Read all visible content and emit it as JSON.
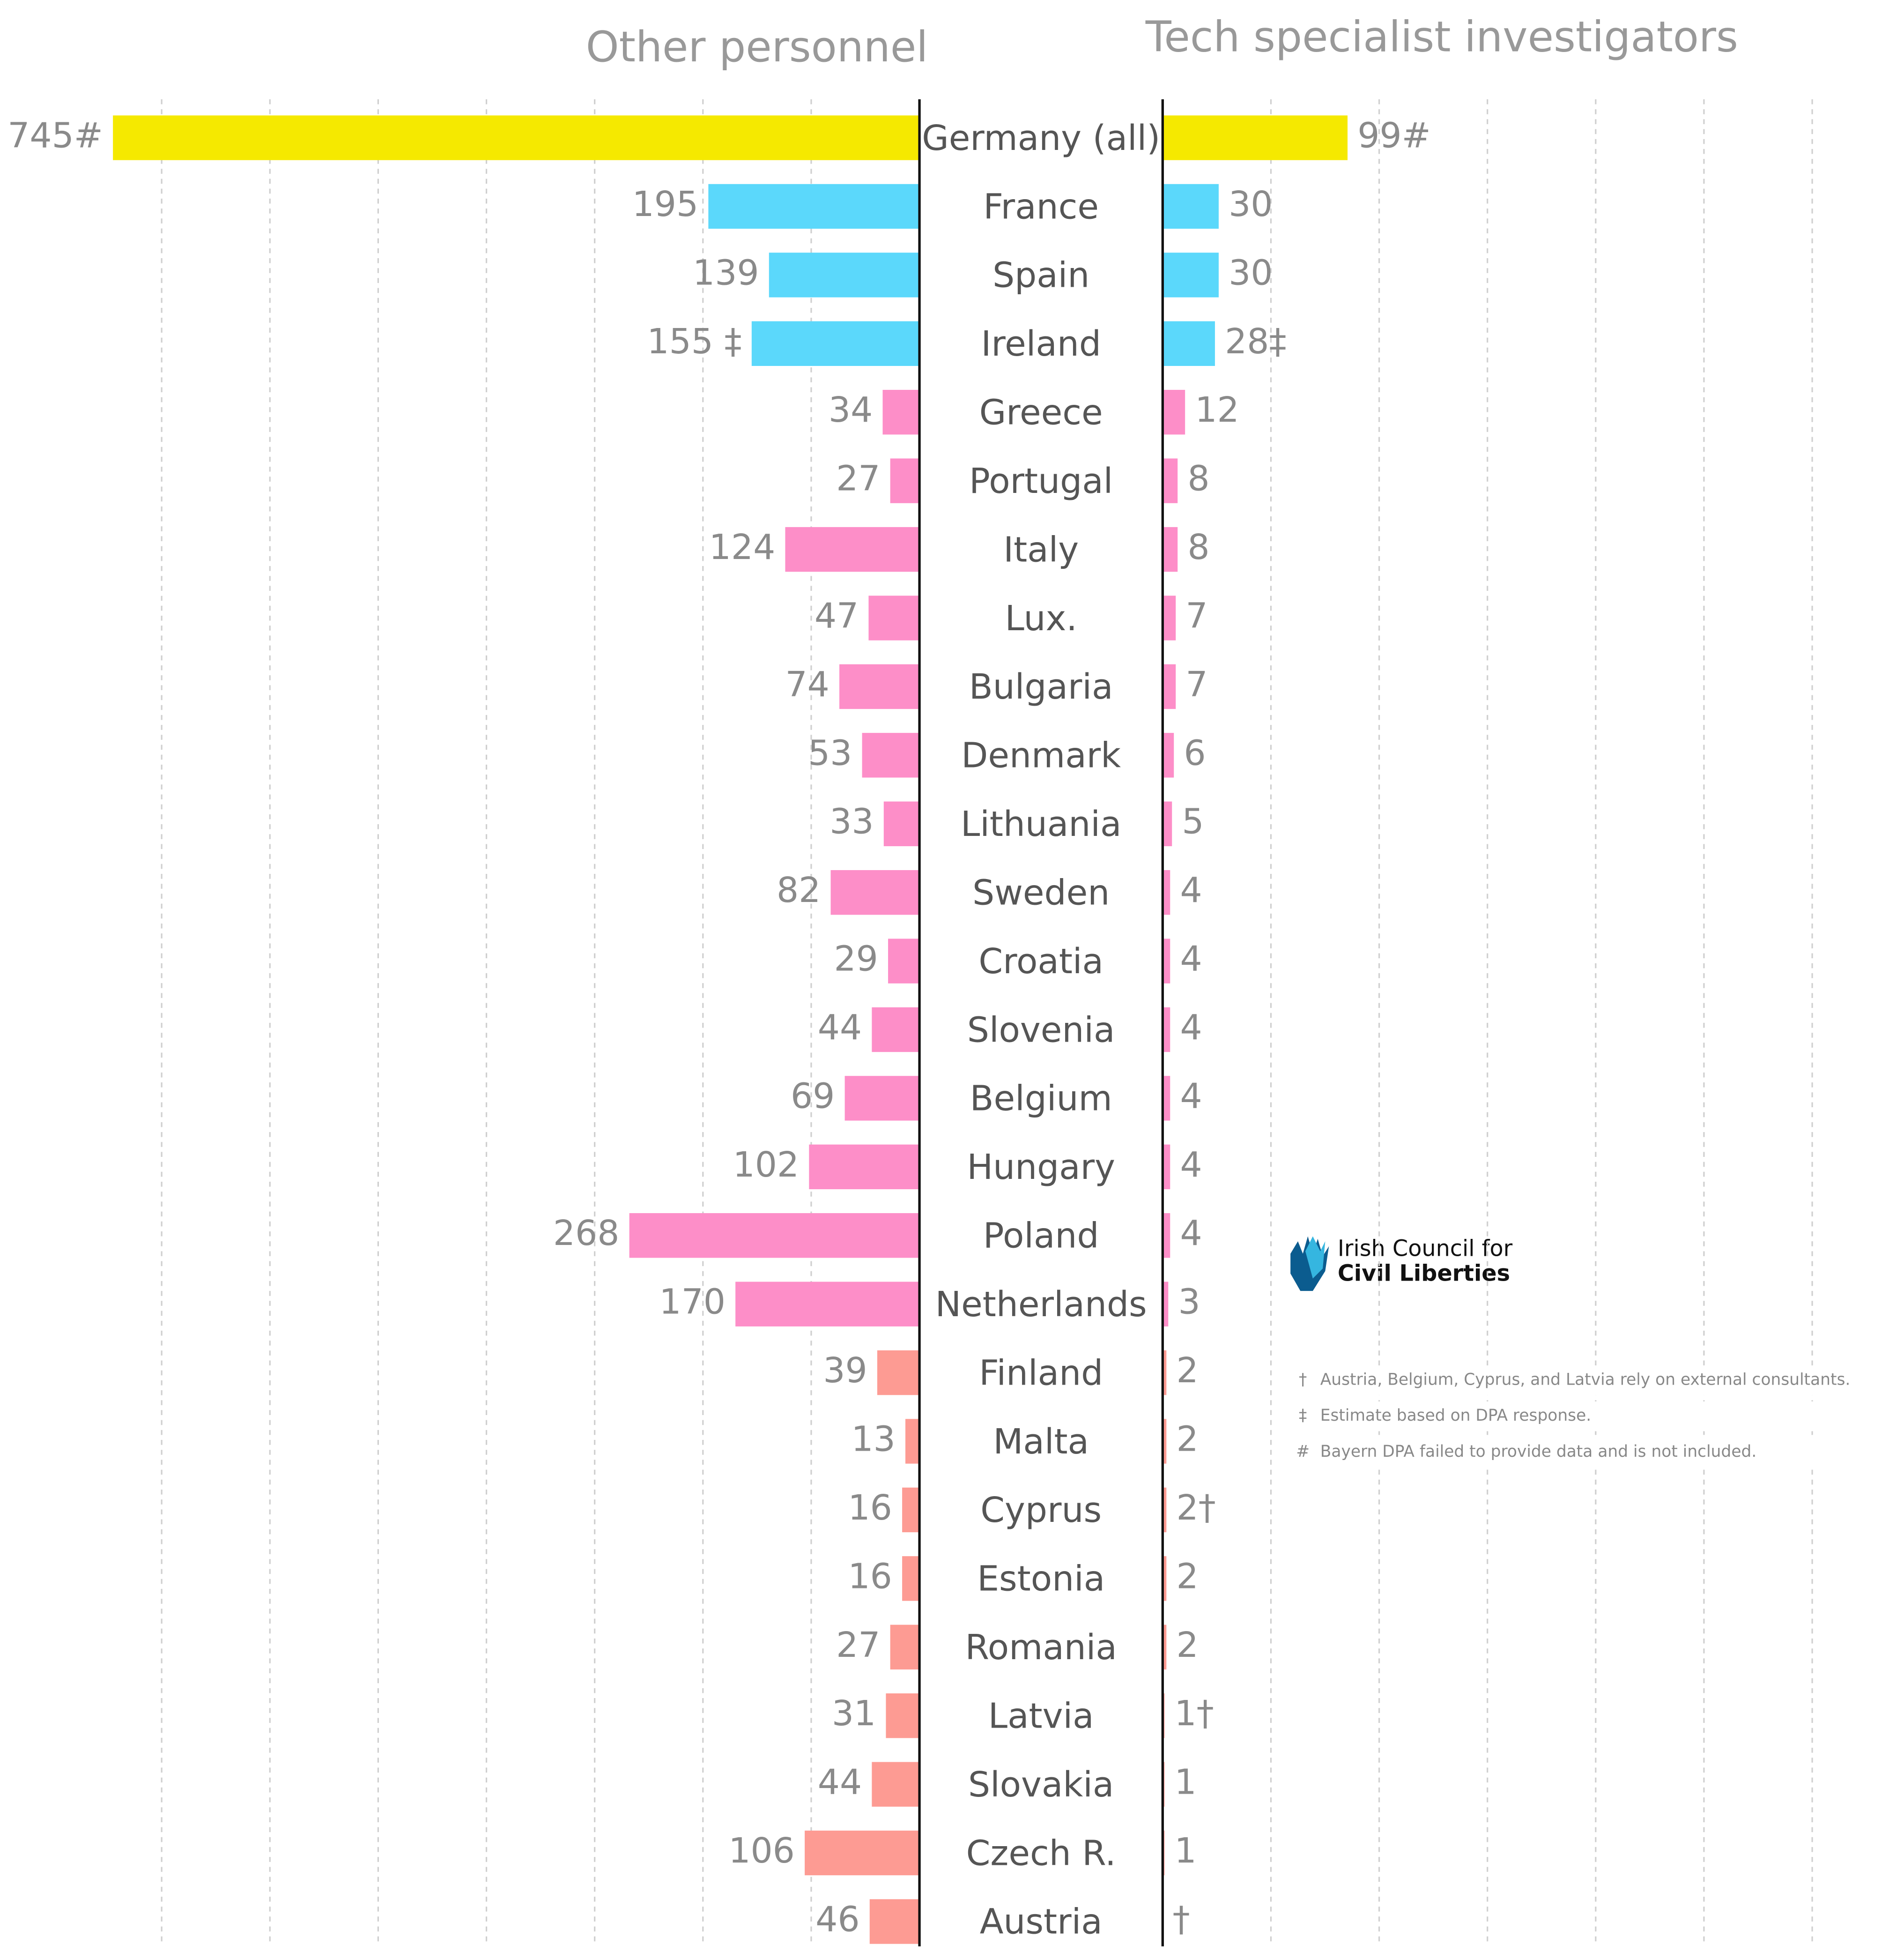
{
  "chart_data": {
    "type": "butterfly",
    "categories": [
      "Germany (all)",
      "France",
      "Spain",
      "Ireland",
      "Greece",
      "Portugal",
      "Italy",
      "Lux.",
      "Bulgaria",
      "Denmark",
      "Lithuania",
      "Sweden",
      "Croatia",
      "Slovenia",
      "Belgium",
      "Hungary",
      "Poland",
      "Netherlands",
      "Finland",
      "Malta",
      "Cyprus",
      "Estonia",
      "Romania",
      "Latvia",
      "Slovakia",
      "Czech R.",
      "Austria"
    ],
    "colors": [
      "#f5e900",
      "#5bd8fb",
      "#5bd8fb",
      "#5bd8fb",
      "#fd8ec8",
      "#fd8ec8",
      "#fd8ec8",
      "#fd8ec8",
      "#fd8ec8",
      "#fd8ec8",
      "#fd8ec8",
      "#fd8ec8",
      "#fd8ec8",
      "#fd8ec8",
      "#fd8ec8",
      "#fd8ec8",
      "#fd8ec8",
      "#fd8ec8",
      "#fd9b93",
      "#fd9b93",
      "#fd9b93",
      "#fd9b93",
      "#fd9b93",
      "#fd9b93",
      "#fd9b93",
      "#fd9b93",
      "#fd9b93"
    ],
    "series": [
      {
        "name": "Other personnel",
        "values": [
          745,
          195,
          139,
          155,
          34,
          27,
          124,
          47,
          74,
          53,
          33,
          82,
          29,
          44,
          69,
          102,
          268,
          170,
          39,
          13,
          16,
          16,
          27,
          31,
          44,
          106,
          46
        ],
        "value_labels": [
          "745#",
          "195",
          "139",
          "155 ‡",
          "34",
          "27",
          "124",
          "47",
          "74",
          "53",
          "33",
          "82",
          "29",
          "44",
          "69",
          "102",
          "268",
          "170",
          "39",
          "13",
          "16",
          "16",
          "27",
          "31",
          "44",
          "106",
          "46"
        ]
      },
      {
        "name": "Tech specialist investigators",
        "axis": "x2",
        "values": [
          99,
          30,
          30,
          28,
          12,
          8,
          8,
          7,
          7,
          6,
          5,
          4,
          4,
          4,
          4,
          4,
          4,
          3,
          2,
          2,
          2,
          2,
          2,
          1,
          1,
          1,
          null
        ],
        "value_labels": [
          "99#",
          "30",
          "30",
          "28‡",
          "12",
          "8",
          "8",
          "7",
          "7",
          "6",
          "5",
          "4",
          "4",
          "4",
          "4",
          "4",
          "4",
          "3",
          "2",
          "2",
          "2†",
          "2",
          "2",
          "1†",
          "1",
          "1",
          "†"
        ]
      }
    ],
    "xlim": [
      0,
      800
    ],
    "xticks": [
      100,
      200,
      300,
      400,
      500,
      600,
      700
    ],
    "x2lim": [
      0,
      400
    ],
    "grid": true,
    "logo": [
      "Irish Council for",
      "Civil Liberties"
    ],
    "notes": [
      {
        "symbol": "†",
        "text": "Austria, Belgium, Cyprus, and Latvia rely on external consultants."
      },
      {
        "symbol": "‡",
        "text": "Estimate based on DPA response."
      },
      {
        "symbol": "#",
        "text": "Bayern DPA failed to provide data and is not included."
      }
    ]
  }
}
